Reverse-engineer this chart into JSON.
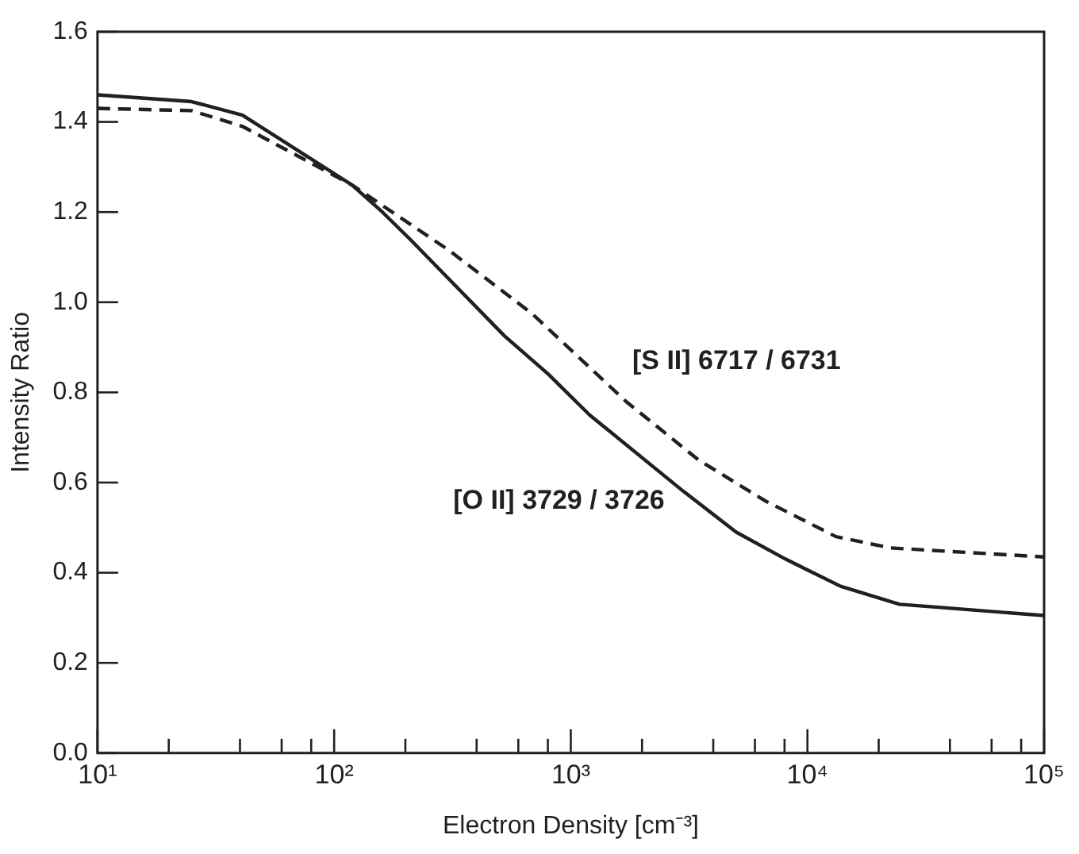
{
  "chart_data": {
    "type": "line",
    "xlabel": "Electron Density [cm⁻³]",
    "ylabel": "Intensity Ratio",
    "log": "x",
    "grid": false,
    "marker": "none",
    "xlim": [
      10,
      100000
    ],
    "xticks": [
      {
        "value": 10,
        "label": "10¹"
      },
      {
        "value": 20,
        "label": null
      },
      {
        "value": 40,
        "label": null
      },
      {
        "value": 60,
        "label": null
      },
      {
        "value": 80,
        "label": null
      },
      {
        "value": 100,
        "label": "10²"
      },
      {
        "value": 200,
        "label": null
      },
      {
        "value": 400,
        "label": null
      },
      {
        "value": 600,
        "label": null
      },
      {
        "value": 800,
        "label": null
      },
      {
        "value": 1000,
        "label": "10³"
      },
      {
        "value": 2000,
        "label": null
      },
      {
        "value": 4000,
        "label": null
      },
      {
        "value": 6000,
        "label": null
      },
      {
        "value": 8000,
        "label": null
      },
      {
        "value": 10000,
        "label": "10⁴"
      },
      {
        "value": 20000,
        "label": null
      },
      {
        "value": 40000,
        "label": null
      },
      {
        "value": 60000,
        "label": null
      },
      {
        "value": 80000,
        "label": null
      },
      {
        "value": 100000,
        "label": "10⁵"
      }
    ],
    "ylim": [
      0,
      1.6
    ],
    "yticks": [
      {
        "value": 0,
        "label": "0.0"
      },
      {
        "value": 0.2,
        "label": "0.2"
      },
      {
        "value": 0.4,
        "label": "0.4"
      },
      {
        "value": 0.6,
        "label": "0.6"
      },
      {
        "value": 0.8,
        "label": "0.8"
      },
      {
        "value": 1,
        "label": "1.0"
      },
      {
        "value": 1.2,
        "label": "1.2"
      },
      {
        "value": 1.4,
        "label": "1.4"
      },
      {
        "value": 1.6,
        "label": "1.6"
      }
    ],
    "series": [
      {
        "name": "[O II] 3729 / 3726",
        "color": "#231f20",
        "line_style": "solid",
        "x": [
          10,
          25,
          41,
          119,
          160,
          209,
          525,
          805,
          1200,
          3000,
          5000,
          8100,
          13800,
          24500,
          100000
        ],
        "values": [
          1.46,
          1.445,
          1.415,
          1.26,
          1.2,
          1.14,
          0.925,
          0.84,
          0.75,
          0.58,
          0.49,
          0.43,
          0.37,
          0.33,
          0.305
        ]
      },
      {
        "name": "[S II] 6717 / 6731",
        "color": "#231f20",
        "line_style": "dashed",
        "x": [
          10,
          25,
          41,
          119,
          306,
          685,
          1710,
          3470,
          6600,
          13200,
          22400,
          100000
        ],
        "values": [
          1.43,
          1.425,
          1.39,
          1.26,
          1.115,
          0.975,
          0.78,
          0.65,
          0.56,
          0.48,
          0.455,
          0.435
        ]
      }
    ]
  }
}
